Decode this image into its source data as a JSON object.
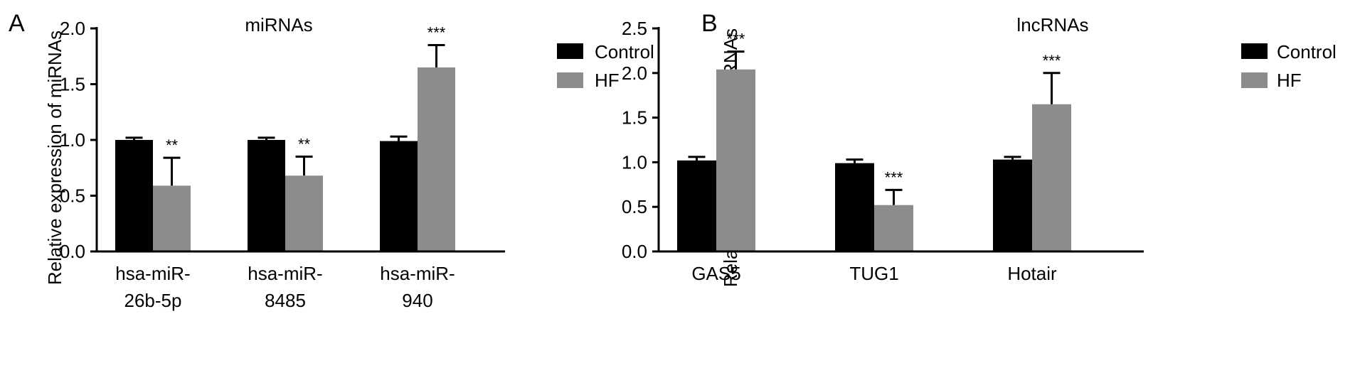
{
  "colors": {
    "control": "#000000",
    "hf": "#8c8c8c",
    "axis": "#000000"
  },
  "chart_data": [
    {
      "type": "bar",
      "panel_label": "A",
      "title": "miRNAs",
      "xlabel": "",
      "ylabel": "Relative expression of miRNAs",
      "ylim": [
        0,
        2.0
      ],
      "yticks": [
        "0.0",
        "0.5",
        "1.0",
        "1.5",
        "2.0"
      ],
      "grid": false,
      "legend_position": "top-right",
      "categories": [
        [
          "hsa-miR-",
          "26b-5p"
        ],
        [
          "hsa-miR-",
          "8485"
        ],
        [
          "hsa-miR-",
          "940"
        ]
      ],
      "series": [
        {
          "name": "Control",
          "color": "#000000",
          "values": [
            1.0,
            1.0,
            0.99
          ],
          "errors": [
            0.02,
            0.02,
            0.04
          ]
        },
        {
          "name": "HF",
          "color": "#8c8c8c",
          "values": [
            0.59,
            0.68,
            1.65
          ],
          "errors": [
            0.25,
            0.17,
            0.2
          ]
        }
      ],
      "significance": [
        "**",
        "**",
        "***"
      ]
    },
    {
      "type": "bar",
      "panel_label": "B",
      "title": "lncRNAs",
      "xlabel": "",
      "ylabel": "Relative expression of lncRNAs",
      "ylim": [
        0,
        2.5
      ],
      "yticks": [
        "0.0",
        "0.5",
        "1.0",
        "1.5",
        "2.0",
        "2.5"
      ],
      "grid": false,
      "legend_position": "top-right",
      "categories": [
        [
          "GAS5"
        ],
        [
          "TUG1"
        ],
        [
          "Hotair"
        ]
      ],
      "series": [
        {
          "name": "Control",
          "color": "#000000",
          "values": [
            1.02,
            0.99,
            1.03
          ],
          "errors": [
            0.04,
            0.04,
            0.03
          ]
        },
        {
          "name": "HF",
          "color": "#8c8c8c",
          "values": [
            2.04,
            0.52,
            1.65
          ],
          "errors": [
            0.2,
            0.17,
            0.35
          ]
        }
      ],
      "significance": [
        "***",
        "***",
        "***"
      ]
    }
  ]
}
